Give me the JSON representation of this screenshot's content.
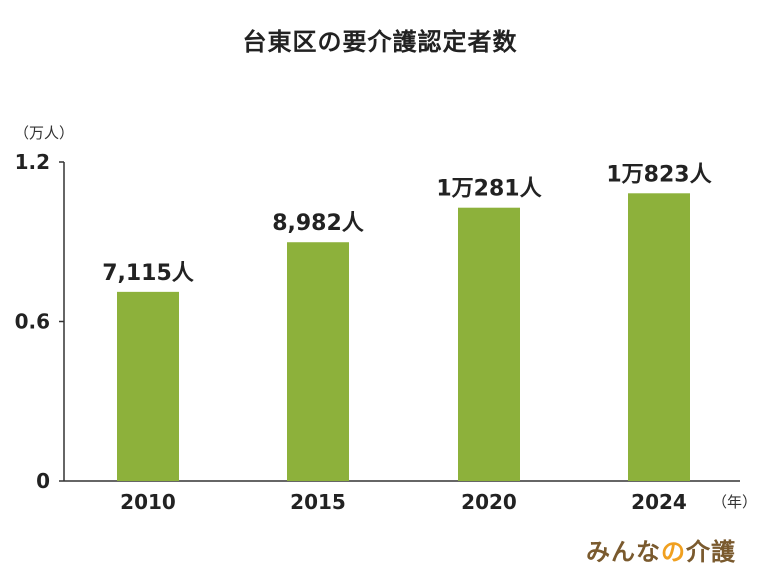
{
  "chart_data": {
    "type": "bar",
    "title": "台東区の要介護認定者数",
    "ylabel": "（万人）",
    "xlabel": "（年）",
    "categories": [
      "2010",
      "2015",
      "2020",
      "2024"
    ],
    "values": [
      0.7115,
      0.8982,
      1.0281,
      1.0823
    ],
    "data_labels": [
      "7,115人",
      "8,982人",
      "1万281人",
      "1万823人"
    ],
    "yticks": [
      {
        "value": 0,
        "label": "0"
      },
      {
        "value": 0.6,
        "label": "0.6"
      },
      {
        "value": 1.2,
        "label": "1.2"
      }
    ],
    "ylim": [
      0,
      1.2
    ],
    "grid": false,
    "bar_color": "#8db13b"
  },
  "branding": {
    "logo_main": "みんな",
    "logo_accent": "の",
    "logo_end": "介護",
    "main_color": "#7a5a2e",
    "accent_color": "#f0a020"
  }
}
